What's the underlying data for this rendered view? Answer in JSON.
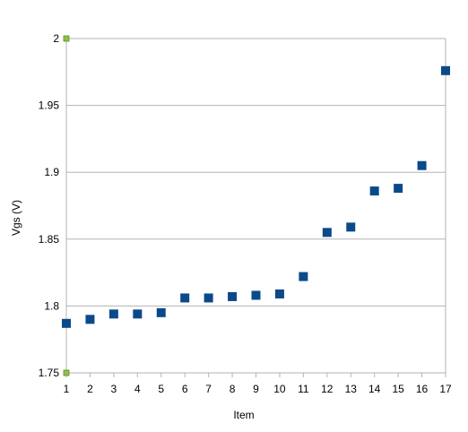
{
  "chart_data": {
    "type": "scatter",
    "title": "",
    "xlabel": "Item",
    "ylabel": "Vgs (V)",
    "xlim": [
      1,
      17
    ],
    "ylim": [
      1.75,
      2
    ],
    "x_ticks": [
      "1",
      "2",
      "3",
      "4",
      "5",
      "6",
      "7",
      "8",
      "9",
      "10",
      "11",
      "12",
      "13",
      "14",
      "15",
      "16",
      "17"
    ],
    "y_ticks": [
      "1.75",
      "1.8",
      "1.85",
      "1.9",
      "1.95",
      "2"
    ],
    "grid": "horizontal",
    "legend": "none",
    "colors": {
      "marker": "#0b4a8a",
      "corner_marker": "#8bc34a",
      "grid": "#b3b3b3",
      "axis": "#b3b3b3"
    },
    "series": [
      {
        "x": [
          1,
          2,
          3,
          4,
          5,
          6,
          7,
          8,
          9,
          10,
          11,
          12,
          13,
          14,
          15,
          16,
          17
        ],
        "y": [
          1.787,
          1.79,
          1.794,
          1.794,
          1.795,
          1.806,
          1.806,
          1.807,
          1.808,
          1.809,
          1.822,
          1.855,
          1.859,
          1.886,
          1.888,
          1.905,
          1.976
        ]
      }
    ]
  }
}
